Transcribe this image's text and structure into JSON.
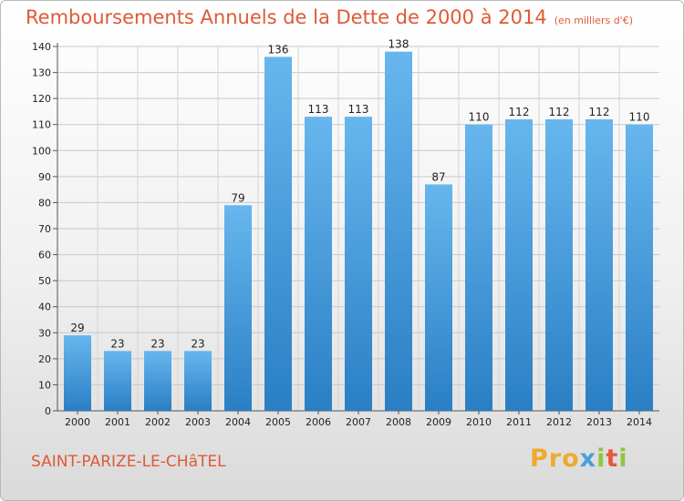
{
  "title": "Remboursements Annuels de la Dette de 2000 à 2014",
  "unit": "(en milliers d'€)",
  "town": "SAINT-PARIZE-LE-CHâTEL",
  "logo": {
    "p1": "Pro",
    "p2": "x",
    "p3": "i",
    "p4": "t",
    "p5": "i"
  },
  "colors": {
    "bar_light": "#67b6ee",
    "bar_dark": "#2a7fc4",
    "title": "#de5a36"
  },
  "chart_data": {
    "type": "bar",
    "title": "Remboursements Annuels de la Dette de 2000 à 2014",
    "categories": [
      "2000",
      "2001",
      "2002",
      "2003",
      "2004",
      "2005",
      "2006",
      "2007",
      "2008",
      "2009",
      "2010",
      "2011",
      "2012",
      "2013",
      "2014"
    ],
    "values": [
      29,
      23,
      23,
      23,
      79,
      136,
      113,
      113,
      138,
      87,
      110,
      112,
      112,
      112,
      110
    ],
    "ylim": [
      0,
      140
    ],
    "yticks": [
      0,
      10,
      20,
      30,
      40,
      50,
      60,
      70,
      80,
      90,
      100,
      110,
      120,
      130,
      140
    ],
    "grid": true,
    "legend": "none"
  }
}
